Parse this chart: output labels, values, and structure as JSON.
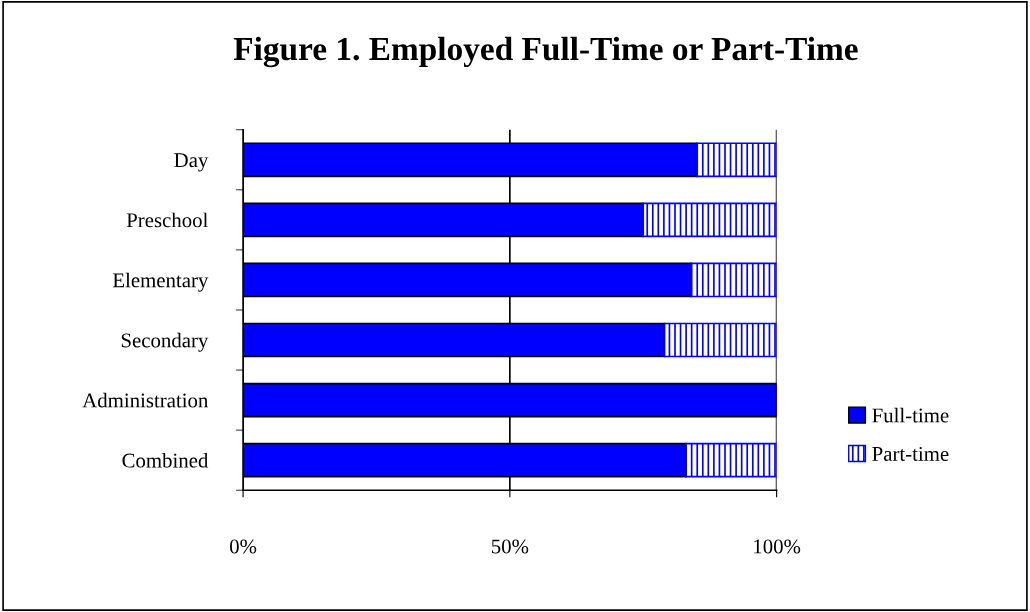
{
  "chart_data": {
    "type": "bar",
    "orientation": "horizontal",
    "stacked": true,
    "title": "Figure 1. Employed Full-Time or Part-Time",
    "categories": [
      "Day",
      "Preschool",
      "Elementary",
      "Secondary",
      "Administration",
      "Combined"
    ],
    "series": [
      {
        "name": "Full-time",
        "color": "#0000ff",
        "values": [
          85,
          75,
          84,
          79,
          100,
          83
        ]
      },
      {
        "name": "Part-time",
        "color": "#0000ff",
        "values": [
          15,
          25,
          16,
          21,
          0,
          17
        ]
      }
    ],
    "xlim": [
      0,
      100
    ],
    "xticks": [
      {
        "value": 0,
        "label": "0%"
      },
      {
        "value": 50,
        "label": "50%"
      },
      {
        "value": 100,
        "label": "100%"
      }
    ],
    "grid": "x",
    "legend": "right"
  }
}
